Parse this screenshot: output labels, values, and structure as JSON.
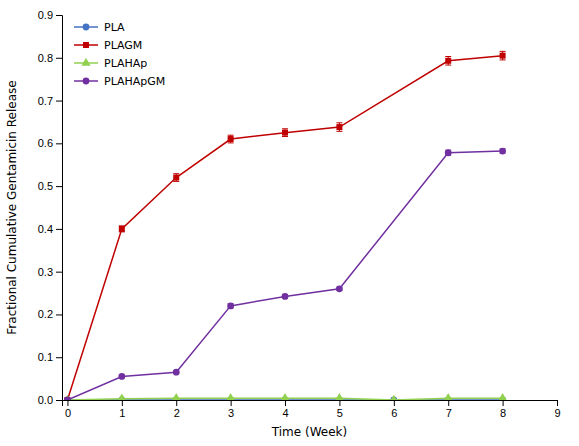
{
  "chart_data": {
    "type": "line",
    "xlabel": "Time (Week)",
    "ylabel": "Fractional Cumulative Gentamicin Release",
    "series": [
      {
        "name": "PLA",
        "color": "#4472c4",
        "marker": "circle",
        "line_style": "solid",
        "x": [
          0,
          1,
          2,
          3,
          4,
          5,
          6,
          7,
          8
        ],
        "values": [
          0.0,
          0.0,
          0.0,
          0.0,
          0.0,
          0.0,
          0.0,
          0.0,
          0.0
        ],
        "errors": [
          0.0,
          0.0,
          0.0,
          0.0,
          0.0,
          0.0,
          0.0,
          0.0,
          0.0
        ]
      },
      {
        "name": "PLAGM",
        "color": "#c00000",
        "marker": "square",
        "line_style": "solid",
        "x": [
          0,
          1,
          2,
          3,
          4,
          5,
          7,
          8
        ],
        "values": [
          0.0,
          0.4,
          0.52,
          0.61,
          0.625,
          0.638,
          0.793,
          0.805
        ],
        "errors": [
          0.0,
          0.007,
          0.009,
          0.009,
          0.009,
          0.01,
          0.01,
          0.01
        ]
      },
      {
        "name": "PLAHAp",
        "color": "#92d050",
        "marker": "triangle",
        "line_style": "solid",
        "x": [
          0,
          1,
          2,
          3,
          4,
          5,
          6,
          7,
          8
        ],
        "values": [
          0.0,
          0.003,
          0.004,
          0.004,
          0.004,
          0.004,
          0.0,
          0.004,
          0.004
        ],
        "errors": [
          0.0,
          0.001,
          0.001,
          0.001,
          0.001,
          0.001,
          0.0,
          0.001,
          0.001
        ]
      },
      {
        "name": "PLAHApGM",
        "color": "#7030a0",
        "marker": "circle",
        "line_style": "solid",
        "x": [
          0,
          1,
          2,
          3,
          4,
          5,
          7,
          8
        ],
        "values": [
          0.0,
          0.055,
          0.065,
          0.22,
          0.242,
          0.26,
          0.578,
          0.582
        ],
        "errors": [
          0.0,
          0.003,
          0.003,
          0.005,
          0.004,
          0.004,
          0.006,
          0.005
        ]
      }
    ],
    "xlim": [
      -0.1,
      9.0
    ],
    "ylim": [
      0.0,
      0.9
    ],
    "xticks": [
      0,
      1,
      2,
      3,
      4,
      5,
      6,
      7,
      8,
      9
    ],
    "yticks": [
      {
        "value": 0.0,
        "label": "0.0"
      },
      0.1,
      0.2,
      0.3,
      0.4,
      0.5,
      0.6,
      0.7,
      0.8,
      0.9
    ],
    "grid": false,
    "legend": "upper-left"
  }
}
